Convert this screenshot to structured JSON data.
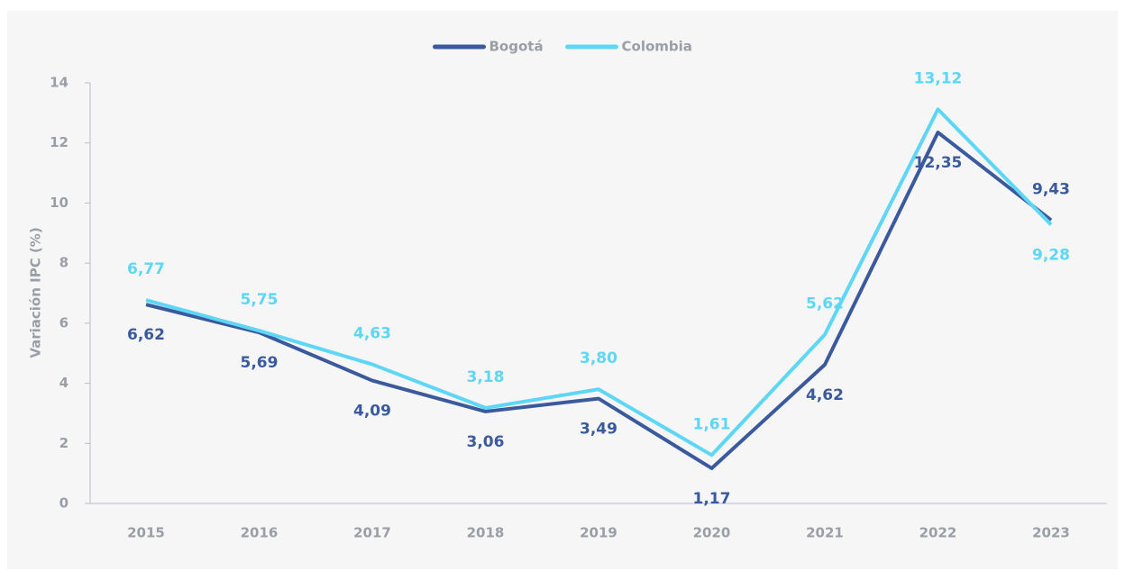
{
  "chart_data": {
    "type": "line",
    "y_label": "Variación IPC (%)",
    "categories": [
      "2015",
      "2016",
      "2017",
      "2018",
      "2019",
      "2020",
      "2021",
      "2022",
      "2023"
    ],
    "series": [
      {
        "name": "Bogotá",
        "color": "#3b5a9d",
        "values": [
          6.62,
          5.69,
          4.09,
          3.06,
          3.49,
          1.17,
          4.62,
          12.35,
          9.43
        ],
        "value_labels": [
          "6,62",
          "5,69",
          "4,09",
          "3,06",
          "3,49",
          "1,17",
          "4,62",
          "12,35",
          "9,43"
        ]
      },
      {
        "name": "Colombia",
        "color": "#5ed6f6",
        "values": [
          6.77,
          5.75,
          4.63,
          3.18,
          3.8,
          1.61,
          5.62,
          13.12,
          9.28
        ],
        "value_labels": [
          "6,77",
          "5,75",
          "4,63",
          "3,18",
          "3,80",
          "1,61",
          "5,62",
          "13,12",
          "9,28"
        ]
      }
    ],
    "ylim": [
      0,
      14
    ],
    "yticks": [
      0,
      2,
      4,
      6,
      8,
      10,
      12,
      14
    ],
    "grid": false,
    "legend": "top"
  }
}
